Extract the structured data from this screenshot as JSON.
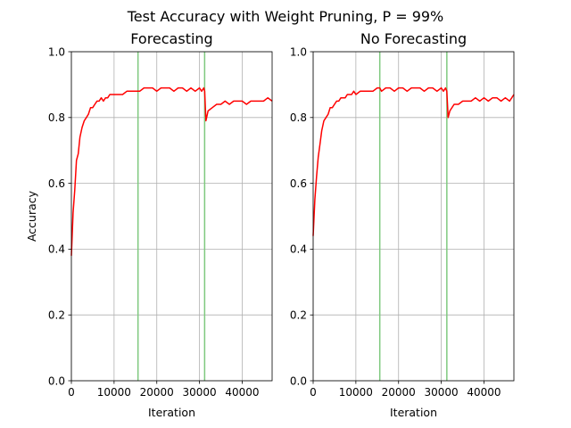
{
  "figure": {
    "suptitle": "Test Accuracy with Weight Pruning, P = 99%"
  },
  "chart_data": [
    {
      "type": "line",
      "title": "Forecasting",
      "xlabel": "Iteration",
      "ylabel": "Accuracy",
      "xlim": [
        0,
        47000
      ],
      "ylim": [
        0,
        1.0
      ],
      "xticks": [
        0,
        10000,
        20000,
        30000,
        40000
      ],
      "yticks": [
        0.0,
        0.2,
        0.4,
        0.6,
        0.8,
        1.0
      ],
      "grid": true,
      "colors": {
        "series": "#ff0000",
        "vlines": "#7fc97f",
        "grid": "#b0b0b0"
      },
      "vlines": [
        15600,
        31200
      ],
      "series": [
        {
          "x": [
            0,
            400,
            800,
            1200,
            1600,
            2000,
            2500,
            3000,
            3500,
            4000,
            4500,
            5000,
            5500,
            6000,
            6500,
            7000,
            7500,
            8000,
            8500,
            9000,
            9500,
            10000,
            11000,
            12000,
            13000,
            14000,
            15000,
            15600,
            16000,
            17000,
            18000,
            19000,
            20000,
            21000,
            22000,
            23000,
            24000,
            25000,
            26000,
            27000,
            28000,
            29000,
            30000,
            30500,
            31000,
            31200,
            31500,
            32000,
            33000,
            34000,
            35000,
            36000,
            37000,
            38000,
            39000,
            40000,
            41000,
            42000,
            43000,
            44000,
            45000,
            46000,
            47000
          ],
          "y": [
            0.38,
            0.51,
            0.58,
            0.67,
            0.69,
            0.74,
            0.77,
            0.79,
            0.8,
            0.81,
            0.83,
            0.83,
            0.84,
            0.85,
            0.85,
            0.86,
            0.85,
            0.86,
            0.86,
            0.87,
            0.87,
            0.87,
            0.87,
            0.87,
            0.88,
            0.88,
            0.88,
            0.88,
            0.88,
            0.89,
            0.89,
            0.89,
            0.88,
            0.89,
            0.89,
            0.89,
            0.88,
            0.89,
            0.89,
            0.88,
            0.89,
            0.88,
            0.89,
            0.88,
            0.89,
            0.88,
            0.79,
            0.82,
            0.83,
            0.84,
            0.84,
            0.85,
            0.84,
            0.85,
            0.85,
            0.85,
            0.84,
            0.85,
            0.85,
            0.85,
            0.85,
            0.86,
            0.85
          ]
        }
      ]
    },
    {
      "type": "line",
      "title": "No Forecasting",
      "xlabel": "Iteration",
      "ylabel": "",
      "xlim": [
        0,
        47000
      ],
      "ylim": [
        0,
        1.0
      ],
      "xticks": [
        0,
        10000,
        20000,
        30000,
        40000
      ],
      "yticks": [
        0.0,
        0.2,
        0.4,
        0.6,
        0.8,
        1.0
      ],
      "grid": true,
      "colors": {
        "series": "#ff0000",
        "vlines": "#7fc97f",
        "grid": "#b0b0b0"
      },
      "vlines": [
        15600,
        31300
      ],
      "series": [
        {
          "x": [
            0,
            400,
            800,
            1200,
            1600,
            2000,
            2500,
            3000,
            3500,
            4000,
            4500,
            5000,
            5500,
            6000,
            6500,
            7000,
            7500,
            8000,
            8500,
            9000,
            9500,
            10000,
            11000,
            12000,
            13000,
            14000,
            15000,
            15600,
            16000,
            17000,
            18000,
            19000,
            20000,
            21000,
            22000,
            23000,
            24000,
            25000,
            26000,
            27000,
            28000,
            29000,
            30000,
            30500,
            31000,
            31300,
            31600,
            32000,
            33000,
            34000,
            35000,
            36000,
            37000,
            38000,
            39000,
            40000,
            41000,
            42000,
            43000,
            44000,
            45000,
            46000,
            47000
          ],
          "y": [
            0.44,
            0.55,
            0.62,
            0.68,
            0.72,
            0.76,
            0.79,
            0.8,
            0.81,
            0.83,
            0.83,
            0.84,
            0.85,
            0.85,
            0.86,
            0.86,
            0.86,
            0.87,
            0.87,
            0.87,
            0.88,
            0.87,
            0.88,
            0.88,
            0.88,
            0.88,
            0.89,
            0.89,
            0.88,
            0.89,
            0.89,
            0.88,
            0.89,
            0.89,
            0.88,
            0.89,
            0.89,
            0.89,
            0.88,
            0.89,
            0.89,
            0.88,
            0.89,
            0.88,
            0.89,
            0.88,
            0.8,
            0.82,
            0.84,
            0.84,
            0.85,
            0.85,
            0.85,
            0.86,
            0.85,
            0.86,
            0.85,
            0.86,
            0.86,
            0.85,
            0.86,
            0.85,
            0.87
          ]
        }
      ]
    }
  ]
}
